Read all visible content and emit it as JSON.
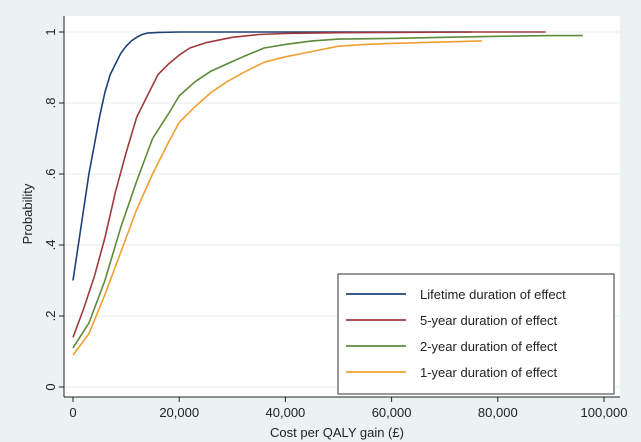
{
  "chart_data": {
    "type": "line",
    "xlabel": "Cost per QALY gain (£)",
    "ylabel": "Probability",
    "xlim": [
      0,
      100000
    ],
    "ylim": [
      0,
      1
    ],
    "x_ticks": [
      0,
      20000,
      40000,
      60000,
      80000,
      100000
    ],
    "x_tick_labels": [
      "0",
      "20,000",
      "40,000",
      "60,000",
      "80,000",
      "100,000"
    ],
    "y_ticks": [
      0,
      0.2,
      0.4,
      0.6,
      0.8,
      1
    ],
    "y_tick_labels": [
      "0",
      ".2",
      ".4",
      ".6",
      ".8",
      "1"
    ],
    "grid": "horizontal",
    "legend_position": "bottom-right",
    "series": [
      {
        "name": "Lifetime duration of effect",
        "color": "#1f3f7a",
        "points": [
          [
            0,
            0.3
          ],
          [
            1000,
            0.4
          ],
          [
            2000,
            0.5
          ],
          [
            3000,
            0.6
          ],
          [
            4000,
            0.68
          ],
          [
            5000,
            0.76
          ],
          [
            6000,
            0.83
          ],
          [
            7000,
            0.88
          ],
          [
            8000,
            0.91
          ],
          [
            9000,
            0.94
          ],
          [
            10000,
            0.96
          ],
          [
            11000,
            0.975
          ],
          [
            12000,
            0.985
          ],
          [
            13000,
            0.993
          ],
          [
            14000,
            0.997
          ],
          [
            16000,
            0.999
          ],
          [
            20000,
            1.0
          ],
          [
            40000,
            1.0
          ],
          [
            60000,
            1.0
          ],
          [
            75000,
            1.0
          ]
        ]
      },
      {
        "name": "5-year duration of effect",
        "color": "#a03a3c",
        "points": [
          [
            0,
            0.14
          ],
          [
            2000,
            0.22
          ],
          [
            4000,
            0.31
          ],
          [
            6000,
            0.42
          ],
          [
            8000,
            0.55
          ],
          [
            10000,
            0.66
          ],
          [
            12000,
            0.76
          ],
          [
            14000,
            0.82
          ],
          [
            16000,
            0.88
          ],
          [
            18000,
            0.91
          ],
          [
            20000,
            0.935
          ],
          [
            22000,
            0.955
          ],
          [
            25000,
            0.97
          ],
          [
            30000,
            0.985
          ],
          [
            35000,
            0.993
          ],
          [
            40000,
            0.996
          ],
          [
            50000,
            0.998
          ],
          [
            60000,
            0.999
          ],
          [
            75000,
            1.0
          ],
          [
            89000,
            1.0
          ]
        ]
      },
      {
        "name": "2-year duration of effect",
        "color": "#5e8a3a",
        "points": [
          [
            0,
            0.11
          ],
          [
            3000,
            0.18
          ],
          [
            6000,
            0.3
          ],
          [
            9000,
            0.45
          ],
          [
            12000,
            0.58
          ],
          [
            15000,
            0.7
          ],
          [
            18000,
            0.77
          ],
          [
            20000,
            0.82
          ],
          [
            23000,
            0.86
          ],
          [
            26000,
            0.89
          ],
          [
            29000,
            0.91
          ],
          [
            32000,
            0.93
          ],
          [
            36000,
            0.955
          ],
          [
            40000,
            0.965
          ],
          [
            45000,
            0.975
          ],
          [
            50000,
            0.98
          ],
          [
            60000,
            0.982
          ],
          [
            70000,
            0.985
          ],
          [
            80000,
            0.988
          ],
          [
            90000,
            0.99
          ],
          [
            96000,
            0.99
          ]
        ]
      },
      {
        "name": "1-year duration of effect",
        "color": "#f0a030",
        "points": [
          [
            0,
            0.09
          ],
          [
            3000,
            0.15
          ],
          [
            6000,
            0.26
          ],
          [
            9000,
            0.38
          ],
          [
            12000,
            0.5
          ],
          [
            15000,
            0.6
          ],
          [
            18000,
            0.69
          ],
          [
            20000,
            0.745
          ],
          [
            23000,
            0.79
          ],
          [
            26000,
            0.83
          ],
          [
            29000,
            0.86
          ],
          [
            32000,
            0.885
          ],
          [
            36000,
            0.915
          ],
          [
            40000,
            0.93
          ],
          [
            45000,
            0.945
          ],
          [
            50000,
            0.96
          ],
          [
            55000,
            0.965
          ],
          [
            60000,
            0.968
          ],
          [
            70000,
            0.972
          ],
          [
            77000,
            0.975
          ]
        ]
      }
    ]
  }
}
